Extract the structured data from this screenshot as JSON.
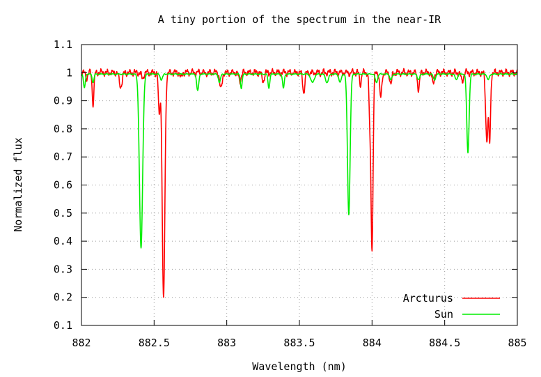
{
  "chart_data": {
    "type": "line",
    "title": "A tiny portion of the spectrum in the near-IR",
    "xlabel": "Wavelength (nm)",
    "ylabel": "Normalized flux",
    "xlim": [
      882,
      885
    ],
    "ylim": [
      0.1,
      1.1
    ],
    "x_ticks": [
      882,
      882.5,
      883,
      883.5,
      884,
      884.5,
      885
    ],
    "x_tick_labels": [
      "882",
      "882.5",
      "883",
      "883.5",
      "884",
      "884.5",
      "885"
    ],
    "y_ticks": [
      0.1,
      0.2,
      0.3,
      0.4,
      0.5,
      0.6,
      0.7,
      0.8,
      0.9,
      1.0,
      1.1
    ],
    "y_tick_labels": [
      "0.1",
      "0.2",
      "0.3",
      "0.4",
      "0.5",
      "0.6",
      "0.7",
      "0.8",
      "0.9",
      "1",
      "1.1"
    ],
    "grid": true,
    "legend_position": "bottom-right",
    "series": [
      {
        "name": "Arcturus",
        "color": "#ff0000",
        "continuum": 1.0,
        "noise_amplitude": 0.012,
        "lines": [
          {
            "center": 882.035,
            "depth": 0.02,
            "width": 0.006
          },
          {
            "center": 882.08,
            "depth": 0.11,
            "width": 0.006
          },
          {
            "center": 882.27,
            "depth": 0.05,
            "width": 0.01
          },
          {
            "center": 882.42,
            "depth": 0.02,
            "width": 0.008
          },
          {
            "center": 882.535,
            "depth": 0.15,
            "width": 0.006
          },
          {
            "center": 882.565,
            "depth": 0.81,
            "width": 0.009
          },
          {
            "center": 882.685,
            "depth": 0.02,
            "width": 0.006
          },
          {
            "center": 882.96,
            "depth": 0.06,
            "width": 0.008
          },
          {
            "center": 883.09,
            "depth": 0.03,
            "width": 0.008
          },
          {
            "center": 883.25,
            "depth": 0.03,
            "width": 0.008
          },
          {
            "center": 883.53,
            "depth": 0.07,
            "width": 0.007
          },
          {
            "center": 883.92,
            "depth": 0.04,
            "width": 0.006
          },
          {
            "center": 883.985,
            "depth": 0.16,
            "width": 0.006
          },
          {
            "center": 884.0,
            "depth": 0.62,
            "width": 0.007
          },
          {
            "center": 884.06,
            "depth": 0.09,
            "width": 0.007
          },
          {
            "center": 884.13,
            "depth": 0.04,
            "width": 0.007
          },
          {
            "center": 884.32,
            "depth": 0.06,
            "width": 0.007
          },
          {
            "center": 884.42,
            "depth": 0.04,
            "width": 0.007
          },
          {
            "center": 884.62,
            "depth": 0.03,
            "width": 0.008
          },
          {
            "center": 884.79,
            "depth": 0.24,
            "width": 0.008
          },
          {
            "center": 884.81,
            "depth": 0.24,
            "width": 0.006
          }
        ]
      },
      {
        "name": "Sun",
        "color": "#00ee00",
        "continuum": 0.995,
        "noise_amplitude": 0.002,
        "lines": [
          {
            "center": 882.02,
            "depth": 0.05,
            "width": 0.006
          },
          {
            "center": 882.08,
            "depth": 0.03,
            "width": 0.006
          },
          {
            "center": 882.41,
            "depth": 0.62,
            "width": 0.011
          },
          {
            "center": 882.55,
            "depth": 0.02,
            "width": 0.008
          },
          {
            "center": 882.8,
            "depth": 0.06,
            "width": 0.007
          },
          {
            "center": 882.95,
            "depth": 0.03,
            "width": 0.007
          },
          {
            "center": 883.1,
            "depth": 0.05,
            "width": 0.006
          },
          {
            "center": 883.29,
            "depth": 0.05,
            "width": 0.006
          },
          {
            "center": 883.39,
            "depth": 0.05,
            "width": 0.006
          },
          {
            "center": 883.59,
            "depth": 0.03,
            "width": 0.012
          },
          {
            "center": 883.69,
            "depth": 0.03,
            "width": 0.01
          },
          {
            "center": 883.78,
            "depth": 0.03,
            "width": 0.008
          },
          {
            "center": 883.84,
            "depth": 0.5,
            "width": 0.009
          },
          {
            "center": 884.03,
            "depth": 0.03,
            "width": 0.008
          },
          {
            "center": 884.13,
            "depth": 0.02,
            "width": 0.008
          },
          {
            "center": 884.32,
            "depth": 0.02,
            "width": 0.008
          },
          {
            "center": 884.43,
            "depth": 0.02,
            "width": 0.008
          },
          {
            "center": 884.58,
            "depth": 0.02,
            "width": 0.008
          },
          {
            "center": 884.66,
            "depth": 0.28,
            "width": 0.008
          },
          {
            "center": 884.8,
            "depth": 0.02,
            "width": 0.008
          }
        ]
      }
    ]
  }
}
